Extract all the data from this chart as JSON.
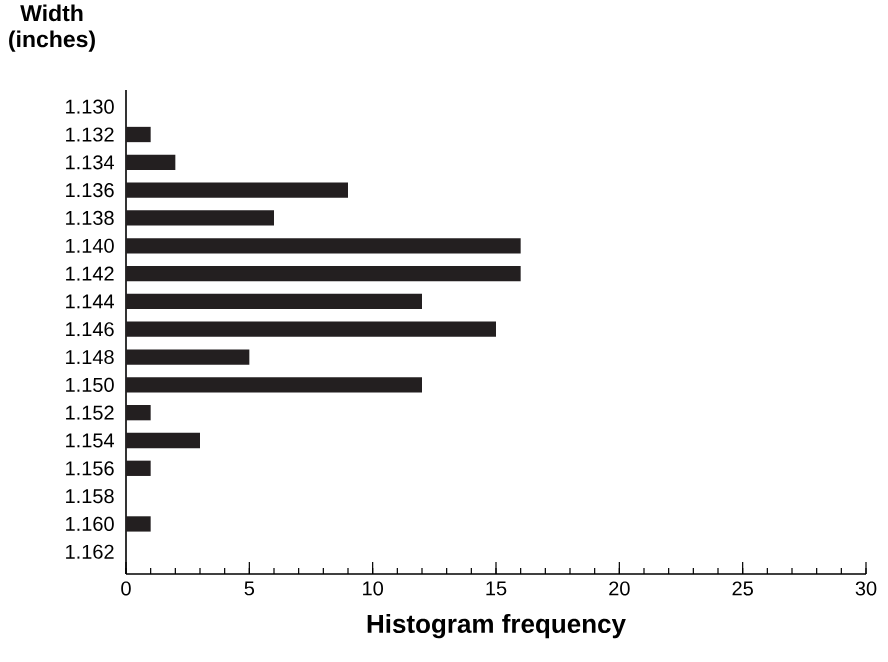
{
  "chart_data": {
    "type": "bar",
    "orientation": "horizontal",
    "xlabel": "Histogram frequency",
    "ylabel": "Width (inches)",
    "categories": [
      "1.130",
      "1.132",
      "1.134",
      "1.136",
      "1.138",
      "1.140",
      "1.142",
      "1.144",
      "1.146",
      "1.148",
      "1.150",
      "1.152",
      "1.154",
      "1.156",
      "1.158",
      "1.160",
      "1.162"
    ],
    "values": [
      0,
      1,
      2,
      9,
      6,
      16,
      16,
      12,
      15,
      5,
      12,
      1,
      3,
      1,
      0,
      1,
      0
    ],
    "color": "#231f20",
    "xlim": [
      0,
      30
    ],
    "xticks": [
      0,
      {
        "value": 1,
        "label": null
      },
      {
        "value": 2,
        "label": null
      },
      {
        "value": 3,
        "label": null
      },
      {
        "value": 4,
        "label": null
      },
      5,
      {
        "value": 6,
        "label": null
      },
      {
        "value": 7,
        "label": null
      },
      {
        "value": 8,
        "label": null
      },
      {
        "value": 9,
        "label": null
      },
      10,
      {
        "value": 11,
        "label": null
      },
      {
        "value": 12,
        "label": null
      },
      {
        "value": 13,
        "label": null
      },
      {
        "value": 14,
        "label": null
      },
      15,
      {
        "value": 16,
        "label": null
      },
      {
        "value": 17,
        "label": null
      },
      {
        "value": 18,
        "label": null
      },
      {
        "value": 19,
        "label": null
      },
      20,
      {
        "value": 21,
        "label": null
      },
      {
        "value": 22,
        "label": null
      },
      {
        "value": 23,
        "label": null
      },
      {
        "value": 24,
        "label": null
      },
      25,
      {
        "value": 26,
        "label": null
      },
      {
        "value": 27,
        "label": null
      },
      {
        "value": 28,
        "label": null
      },
      {
        "value": 29,
        "label": null
      },
      30
    ],
    "grid": false
  }
}
